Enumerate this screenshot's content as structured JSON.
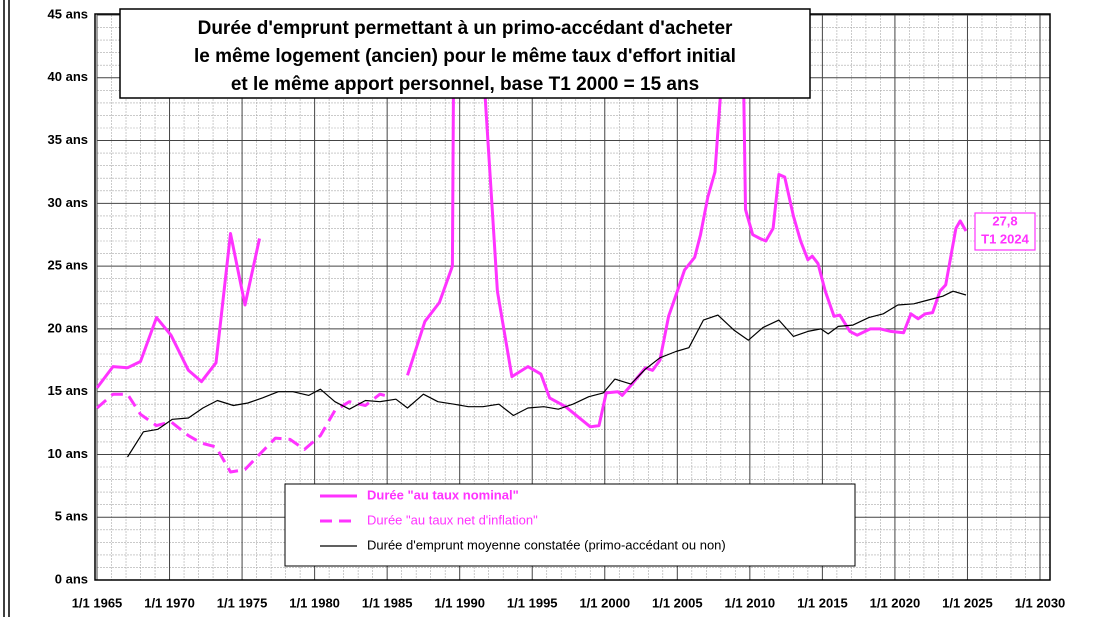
{
  "chart_data": {
    "type": "line",
    "title": [
      "Durée d'emprunt permettant à un primo-accédant d'acheter",
      "le même logement (ancien) pour le même taux d'effort initial",
      "et le même apport personnel, base T1 2000 = 15 ans"
    ],
    "xlim": [
      1965,
      2030
    ],
    "ylim": [
      0,
      45
    ],
    "xticks": [
      {
        "value": 1965,
        "label": "1/1 1965"
      },
      {
        "value": 1970,
        "label": "1/1 1970"
      },
      {
        "value": 1975,
        "label": "1/1 1975"
      },
      {
        "value": 1980,
        "label": "1/1 1980"
      },
      {
        "value": 1985,
        "label": "1/1 1985"
      },
      {
        "value": 1990,
        "label": "1/1 1990"
      },
      {
        "value": 1995,
        "label": "1/1 1995"
      },
      {
        "value": 2000,
        "label": "1/1 2000"
      },
      {
        "value": 2005,
        "label": "1/1 2005"
      },
      {
        "value": 2010,
        "label": "1/1 2010"
      },
      {
        "value": 2015,
        "label": "1/1 2015"
      },
      {
        "value": 2020,
        "label": "1/1 2020"
      },
      {
        "value": 2025,
        "label": "1/1 2025"
      },
      {
        "value": 2030,
        "label": "1/1 2030"
      }
    ],
    "yticks": [
      {
        "value": 0,
        "label": "0 ans"
      },
      {
        "value": 5,
        "label": "5 ans"
      },
      {
        "value": 10,
        "label": "10 ans"
      },
      {
        "value": 15,
        "label": "15 ans"
      },
      {
        "value": 20,
        "label": "20 ans"
      },
      {
        "value": 25,
        "label": "25 ans"
      },
      {
        "value": 30,
        "label": "30 ans"
      },
      {
        "value": 35,
        "label": "35 ans"
      },
      {
        "value": 40,
        "label": "40 ans"
      },
      {
        "value": 45,
        "label": "45 ans"
      }
    ],
    "grid": true,
    "minor_grid": true,
    "series": [
      {
        "name": "Durée \"au taux nominal\"",
        "color": "#ff33ff",
        "width": 3,
        "dashed": false,
        "bold": true,
        "x": [
          1965.0,
          1966.1,
          1967.1,
          1968.0,
          1969.1,
          1970.1,
          1971.3,
          1972.2,
          1973.2,
          1974.2,
          1975.2,
          1976.2,
          null,
          1986.4,
          1987.6,
          1988.6,
          1989.5,
          1989.6,
          null,
          1991.4,
          1992.6,
          1993.6,
          1994.7,
          1995.6,
          1996.2,
          1997.3,
          1999.0,
          1999.6,
          2000.1,
          2000.9,
          2001.2,
          2001.8,
          2002.8,
          2003.3,
          2003.8,
          2004.4,
          2004.7,
          2005.5,
          2006.2,
          2006.6,
          2007.1,
          2007.6,
          2008.0,
          2008.1,
          null,
          2009.5,
          2009.7,
          2010.2,
          2010.7,
          2011.1,
          2011.6,
          2012.0,
          2012.4,
          2013.0,
          2013.5,
          2014.0,
          2014.3,
          2014.7,
          2015.2,
          2015.8,
          2016.2,
          2016.9,
          2017.4,
          2018.3,
          2019.0,
          2019.7,
          2020.6,
          2021.1,
          2021.6,
          2022.1,
          2022.6,
          2023.1,
          2023.5,
          2024.2,
          2024.5,
          2024.9
        ],
        "values": [
          15.3,
          17.0,
          16.9,
          17.4,
          20.9,
          19.5,
          16.7,
          15.8,
          17.3,
          27.6,
          21.9,
          27.2,
          null,
          16.3,
          20.6,
          22.1,
          25.0,
          45,
          null,
          45,
          23.0,
          16.2,
          17.0,
          16.4,
          14.5,
          13.8,
          12.2,
          12.3,
          14.9,
          15.0,
          14.7,
          15.5,
          16.9,
          16.7,
          17.5,
          21.0,
          22.0,
          24.7,
          25.7,
          27.5,
          30.5,
          32.5,
          39.0,
          45,
          null,
          45,
          29.5,
          27.5,
          27.2,
          27.0,
          28.0,
          32.3,
          32.1,
          29.0,
          27.0,
          25.5,
          25.8,
          25.2,
          23.0,
          21.0,
          21.1,
          19.8,
          19.5,
          20.0,
          20.0,
          19.8,
          19.7,
          21.2,
          20.8,
          21.2,
          21.3,
          23.0,
          23.5,
          28.0,
          28.6,
          27.8
        ]
      },
      {
        "name": "Durée \"au taux net d'inflation\"",
        "color": "#ff33ff",
        "width": 3,
        "dashed": true,
        "bold": false,
        "x": [
          1965.0,
          1966.1,
          1967.1,
          1968.0,
          1969.1,
          1970.1,
          1971.3,
          1972.2,
          1973.2,
          1974.2,
          1975.2,
          1976.2,
          1977.3,
          1978.3,
          1979.3,
          1980.4,
          1981.4,
          1982.4,
          1983.5,
          1984.5,
          1985.2
        ],
        "values": [
          13.7,
          14.8,
          14.8,
          13.2,
          12.3,
          12.6,
          11.5,
          10.9,
          10.6,
          8.6,
          8.8,
          10.0,
          11.3,
          11.2,
          10.4,
          11.5,
          13.5,
          14.2,
          13.9,
          14.8,
          14.6
        ]
      },
      {
        "name": "Durée d'emprunt moyenne constatée (primo-accédant ou non)",
        "color": "#000000",
        "width": 1.2,
        "dashed": false,
        "bold": false,
        "x": [
          1967.1,
          1968.2,
          1969.2,
          1970.2,
          1971.3,
          1972.3,
          1973.3,
          1974.4,
          1975.4,
          1976.4,
          1977.5,
          1978.5,
          1979.6,
          1980.4,
          1981.4,
          1982.4,
          1983.5,
          1984.5,
          1985.6,
          1986.4,
          1987.5,
          1988.5,
          1989.6,
          1990.6,
          1991.6,
          1992.7,
          1993.7,
          1994.7,
          1995.8,
          1996.8,
          1997.8,
          1998.9,
          1999.9,
          2000.7,
          2001.8,
          2002.8,
          2003.8,
          2004.9,
          2005.8,
          2006.8,
          2007.8,
          2008.9,
          2009.9,
          2010.9,
          2012.0,
          2013.0,
          2014.0,
          2014.9,
          2015.4,
          2016.1,
          2017.1,
          2018.2,
          2019.2,
          2020.2,
          2021.3,
          2022.3,
          2023.3,
          2024.0,
          2024.9
        ],
        "values": [
          9.8,
          11.8,
          12.0,
          12.8,
          12.9,
          13.7,
          14.3,
          13.9,
          14.1,
          14.5,
          15.0,
          15.0,
          14.7,
          15.2,
          14.2,
          13.6,
          14.3,
          14.2,
          14.4,
          13.7,
          14.8,
          14.2,
          14.0,
          13.8,
          13.8,
          14.0,
          13.1,
          13.7,
          13.8,
          13.6,
          14.0,
          14.6,
          14.9,
          16.0,
          15.6,
          16.8,
          17.7,
          18.2,
          18.5,
          20.7,
          21.1,
          19.9,
          19.1,
          20.1,
          20.7,
          19.4,
          19.8,
          20.0,
          19.6,
          20.2,
          20.3,
          20.9,
          21.2,
          21.9,
          22.0,
          22.3,
          22.6,
          23.0,
          22.7
        ]
      }
    ],
    "annotation": [
      "27,8",
      "T1 2024"
    ]
  }
}
